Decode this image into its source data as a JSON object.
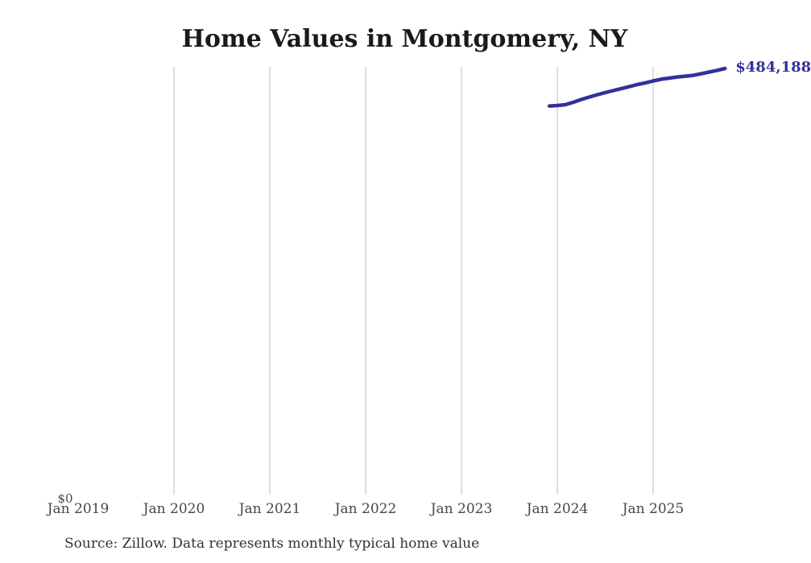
{
  "chart_data": {
    "type": "line",
    "title": "Home Values in Montgomery, NY",
    "source_note": "Source: Zillow. Data represents monthly typical home value",
    "series": [
      {
        "name": "Monthly typical home value",
        "x": [
          "2023-12",
          "2024-01",
          "2024-02",
          "2024-03",
          "2024-04",
          "2024-05",
          "2024-06",
          "2024-07",
          "2024-08",
          "2024-09",
          "2024-10",
          "2024-11",
          "2024-12",
          "2025-01",
          "2025-02",
          "2025-03",
          "2025-04",
          "2025-05",
          "2025-06",
          "2025-07",
          "2025-08",
          "2025-09",
          "2025-10"
        ],
        "values": [
          441900,
          442400,
          443300,
          446000,
          449200,
          451900,
          454600,
          457000,
          459200,
          461400,
          463700,
          466000,
          467900,
          470100,
          472000,
          473300,
          474600,
          475500,
          476400,
          478200,
          480100,
          482000,
          484188
        ]
      }
    ],
    "x_tick_labels": [
      "Jan 2019",
      "Jan 2020",
      "Jan 2021",
      "Jan 2022",
      "Jan 2023",
      "Jan 2024",
      "Jan 2025"
    ],
    "y_zero_label": "$0",
    "end_label": "$484,188",
    "xlabel": "",
    "ylabel": "",
    "x_range": [
      "2019-01",
      "2026-01"
    ],
    "ylim": [
      0,
      486000
    ],
    "grid": "vertical-only",
    "legend": "none",
    "colors": {
      "line": "#34309b",
      "end_label": "#34309b",
      "grid": "#cccccc",
      "axis_labels": "#474747",
      "title": "#1a1a1a",
      "source": "#333333",
      "background": "#ffffff"
    }
  }
}
